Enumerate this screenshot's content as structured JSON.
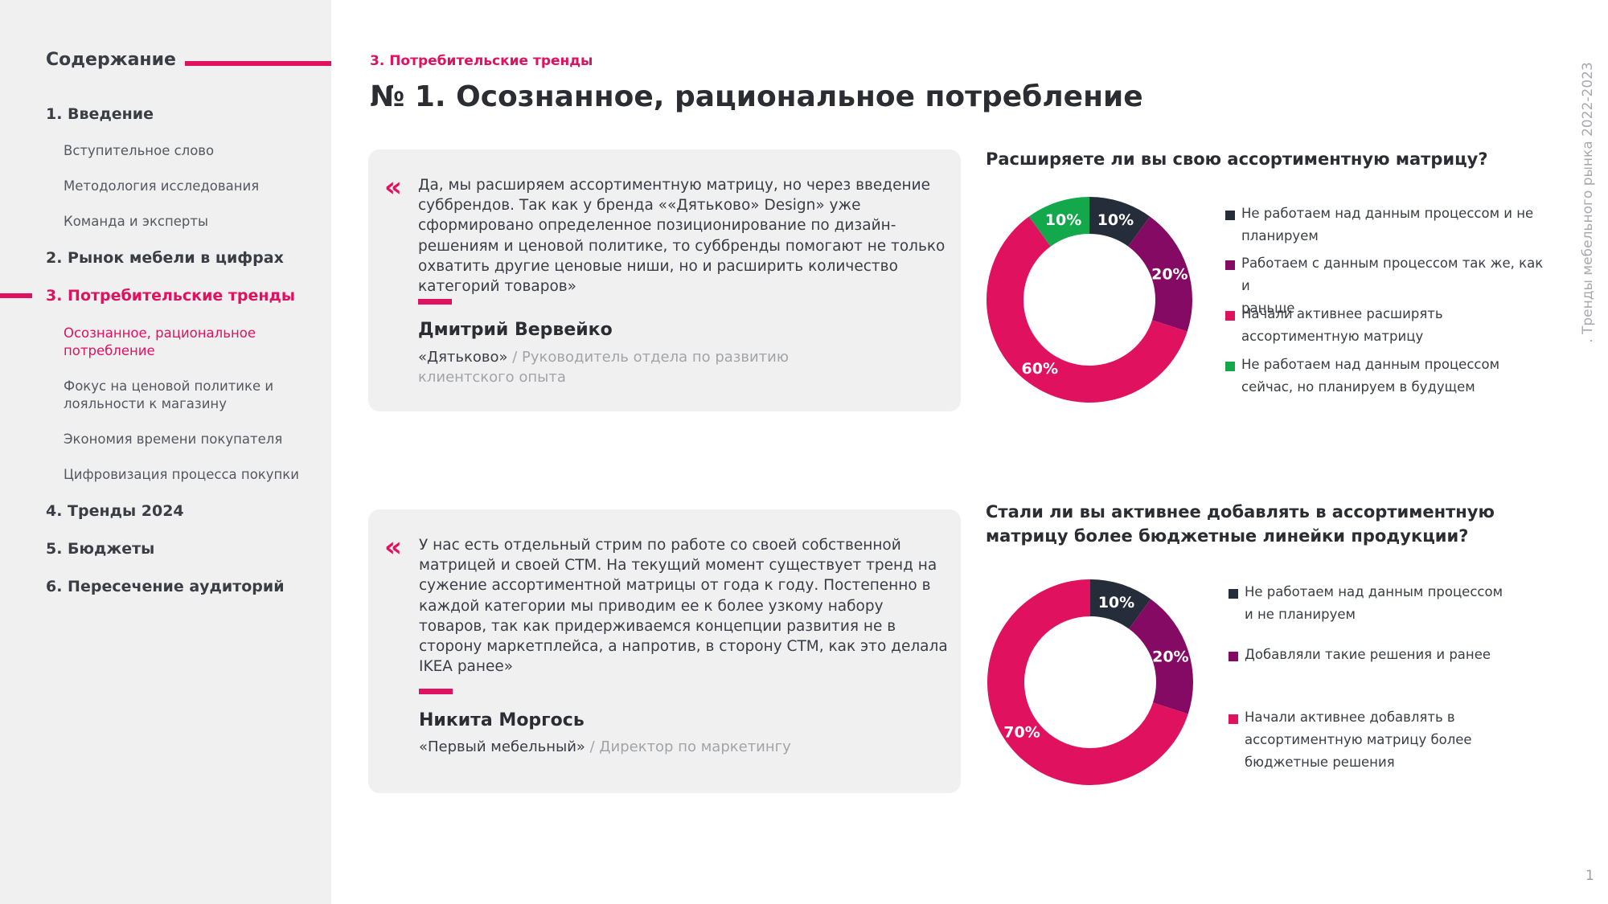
{
  "sidebar": {
    "header": "Содержание",
    "items": [
      {
        "label": "1.  Введение",
        "active": false
      },
      {
        "label": "Вступительное слово",
        "sub": true
      },
      {
        "label": "Методология исследования",
        "sub": true
      },
      {
        "label": "Команда и эксперты",
        "sub": true
      },
      {
        "label": "2.  Рынок мебели в цифрах",
        "active": false
      },
      {
        "label": "3.  Потребительские тренды",
        "active": true
      },
      {
        "label": "Осознанное, рациональное потребление",
        "sub": true,
        "active": true
      },
      {
        "label": "Фокус на ценовой политике и лояльности к магазину",
        "sub": true
      },
      {
        "label": "Экономия времени покупателя",
        "sub": true
      },
      {
        "label": "Цифровизация процесса покупки",
        "sub": true
      },
      {
        "label": "4. Тренды 2024"
      },
      {
        "label": "5.  Бюджеты"
      },
      {
        "label": "6.  Пересечение аудиторий"
      }
    ]
  },
  "header": {
    "section": "3.   Потребительские тренды",
    "title": "№ 1. Осознанное, рациональное потребление"
  },
  "side_text": ". Тренды мебельного рынка 2022-2023",
  "page_number": "1",
  "quotes": [
    {
      "mark": "«",
      "text": "Да, мы расширяем ассортиментную матрицу, но через введение суббрендов. Так как у бренда ««Дятьково» Design» уже сформировано определенное позиционирование по дизайн-решениям и ценовой политике, то суббренды помогают не только охватить другие ценовые ниши, но и расширить количество категорий товаров»",
      "name": "Дмитрий Вервейко",
      "company": "«Дятьково»",
      "role": " / Руководитель отдела по развитию клиентского опыта"
    },
    {
      "mark": "«",
      "text": "У нас есть отдельный стрим по работе со своей собственной матрицей и своей СТМ. На текущий момент существует тренд на сужение ассортиментной матрицы от года к году. Постепенно в каждой категории мы приводим ее к более узкому набору товаров, так как придерживаемся концепции развития не в сторону маркетплейса, а напротив, в сторону СТМ, как это делала IKEA ранее»",
      "name": "Никита Моргось",
      "company": "«Первый мебельный»",
      "role": " / Директор по маркетингу"
    }
  ],
  "chart_data": [
    {
      "type": "pie",
      "title": "Расширяете ли вы свою ассортиментную матрицу?",
      "series": [
        {
          "name": "Не работаем над данным процессом и не планируем",
          "value": 10,
          "label": "10%",
          "color": "#262d3a"
        },
        {
          "name": "Работаем с данным процессом так же, как и раньше",
          "value": 20,
          "label": "20%",
          "color": "#850a63"
        },
        {
          "name": "Начали активнее расширять ассортиментную матрицу",
          "value": 60,
          "label": "60%",
          "color": "#e0115f"
        },
        {
          "name": "Не работаем над данным процессом сейчас, но планируем в будущем",
          "value": 10,
          "label": "10%",
          "color": "#12a84b"
        }
      ],
      "legend_lines": [
        [
          "Не работаем над данным процессом и не",
          "планируем"
        ],
        [
          "Работаем с данным процессом так же, как и",
          "раньше"
        ],
        [
          "Начали активнее расширять",
          "ассортиментную матрицу"
        ],
        [
          "Не работаем над данным процессом",
          "сейчас, но планируем в будущем"
        ]
      ],
      "legend_position": "right"
    },
    {
      "type": "pie",
      "title": "Стали ли вы активнее добавлять в ассортиментную матрицу более бюджетные линейки продукции?",
      "series": [
        {
          "name": "Не работаем над данным процессом и не планируем",
          "value": 10,
          "label": "10%",
          "color": "#262d3a"
        },
        {
          "name": "Добавляли такие решения и ранее",
          "value": 20,
          "label": "20%",
          "color": "#850a63"
        },
        {
          "name": "Начали активнее добавлять в ассортиментную матрицу более бюджетные решения",
          "value": 70,
          "label": "70%",
          "color": "#e0115f"
        }
      ],
      "legend_lines": [
        [
          "Не работаем над данным процессом",
          "и не планируем"
        ],
        [
          "Добавляли такие решения и ранее"
        ],
        [
          "Начали активнее добавлять в",
          "ассортиментную матрицу более",
          "бюджетные решения"
        ]
      ],
      "legend_position": "right"
    }
  ]
}
